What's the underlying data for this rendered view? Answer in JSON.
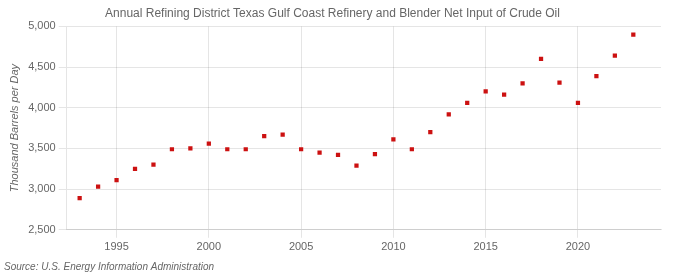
{
  "chart_data": {
    "type": "scatter",
    "title": "Annual Refining District Texas Gulf Coast Refinery and Blender Net Input of Crude Oil",
    "ylabel": "Thousand Barrels per Day",
    "source": "Source: U.S. Energy Information Administration",
    "x": [
      1993,
      1994,
      1995,
      1996,
      1997,
      1998,
      1999,
      2000,
      2001,
      2002,
      2003,
      2004,
      2005,
      2006,
      2007,
      2008,
      2009,
      2010,
      2011,
      2012,
      2013,
      2014,
      2015,
      2016,
      2017,
      2018,
      2019,
      2020,
      2021,
      2022,
      2023
    ],
    "values": [
      2890,
      3030,
      3110,
      3250,
      3300,
      3490,
      3500,
      3560,
      3490,
      3490,
      3650,
      3670,
      3490,
      3450,
      3420,
      3290,
      3430,
      3610,
      3490,
      3700,
      3920,
      4060,
      4200,
      4160,
      4300,
      4600,
      4310,
      4060,
      4390,
      4640,
      4900
    ],
    "color": "#cc1111",
    "marker": "square",
    "xlim": [
      1992.3,
      2024.5
    ],
    "xticks": [
      1995,
      2000,
      2005,
      2010,
      2015,
      2020
    ],
    "ylim": [
      2500,
      5000
    ],
    "yticks": [
      {
        "value": 2500,
        "label": "2,500"
      },
      {
        "value": 3000,
        "label": "3,000"
      },
      {
        "value": 3500,
        "label": "3,500"
      },
      {
        "value": 4000,
        "label": "4,000"
      },
      {
        "value": 4500,
        "label": "4,500"
      },
      {
        "value": 5000,
        "label": "5,000"
      }
    ],
    "grid": true
  }
}
